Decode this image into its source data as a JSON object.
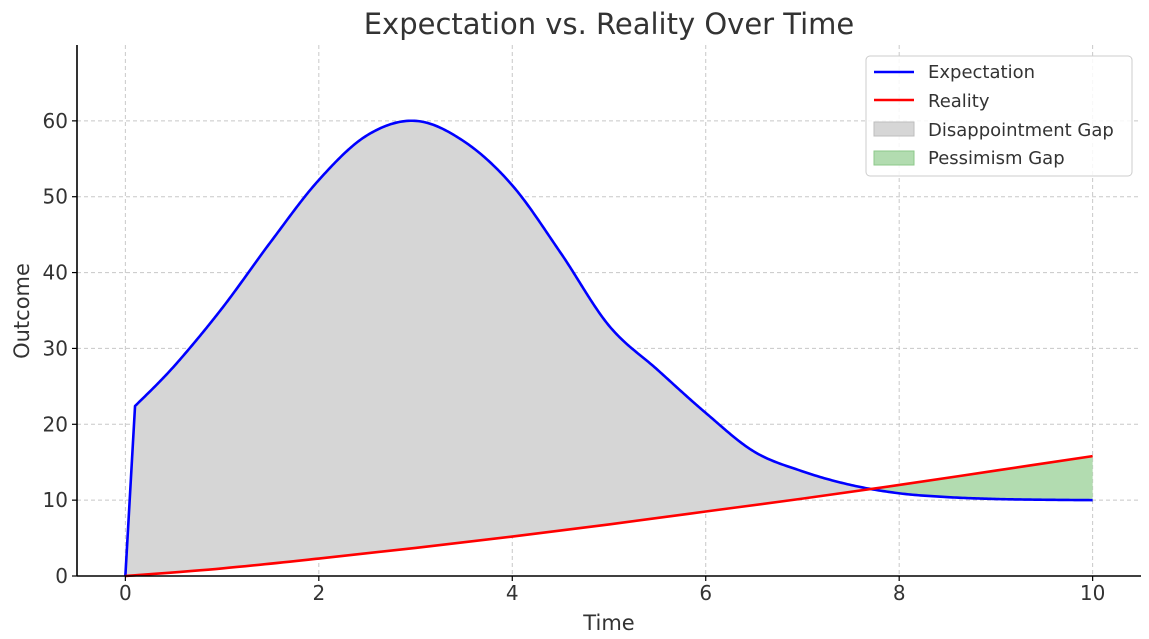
{
  "chart_data": {
    "type": "line",
    "title": "Expectation vs. Reality Over Time",
    "xlabel": "Time",
    "ylabel": "Outcome",
    "xlim": [
      -0.5,
      10.5
    ],
    "ylim": [
      0,
      70
    ],
    "x_ticks": [
      0,
      2,
      4,
      6,
      8,
      10
    ],
    "y_ticks": [
      0,
      10,
      20,
      30,
      40,
      50,
      60
    ],
    "grid": true,
    "legend_position": "top-right",
    "series": [
      {
        "name": "Expectation",
        "color": "#0000ff",
        "x": [
          0,
          0.1,
          0.5,
          1,
          1.5,
          2,
          2.5,
          3,
          3.5,
          4,
          4.5,
          5,
          5.5,
          6,
          6.5,
          7,
          7.5,
          8,
          8.5,
          9,
          9.5,
          10
        ],
        "y": [
          0,
          22.4,
          27.6,
          35.3,
          44.0,
          52.2,
          58.1,
          60.0,
          57.3,
          51.5,
          42.6,
          33.0,
          27.2,
          21.5,
          16.4,
          13.8,
          12.0,
          10.9,
          10.4,
          10.15,
          10.05,
          10.0
        ]
      },
      {
        "name": "Reality",
        "color": "#ff0000",
        "x": [
          0,
          1,
          2,
          3,
          4,
          5,
          6,
          7,
          8,
          9,
          10
        ],
        "y": [
          0,
          1.0,
          2.3,
          3.7,
          5.2,
          6.8,
          8.5,
          10.2,
          12.0,
          13.9,
          15.8
        ]
      }
    ],
    "fills": [
      {
        "name": "Disappointment Gap",
        "color": "#d6d6d6",
        "where": "Expectation > Reality"
      },
      {
        "name": "Pessimism Gap",
        "color": "#b2dcb0",
        "where": "Reality > Expectation"
      }
    ]
  }
}
